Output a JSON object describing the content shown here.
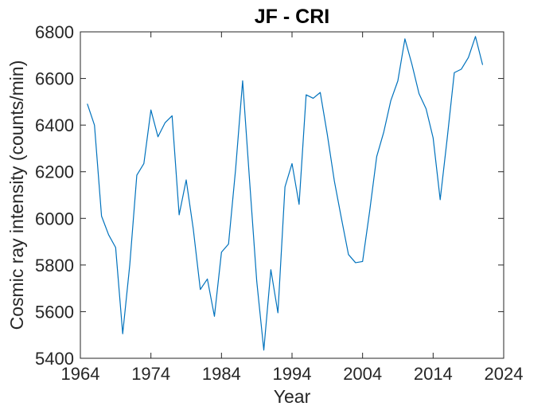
{
  "chart_data": {
    "type": "line",
    "title": "JF - CRI",
    "xlabel": "Year",
    "ylabel": "Cosmic ray intensity (counts/min)",
    "x": [
      1965,
      1966,
      1967,
      1968,
      1969,
      1970,
      1971,
      1972,
      1973,
      1974,
      1975,
      1976,
      1977,
      1978,
      1979,
      1980,
      1981,
      1982,
      1983,
      1984,
      1985,
      1986,
      1987,
      1988,
      1989,
      1990,
      1991,
      1992,
      1993,
      1994,
      1995,
      1996,
      1997,
      1998,
      1999,
      2000,
      2001,
      2002,
      2003,
      2004,
      2005,
      2006,
      2007,
      2008,
      2009,
      2010,
      2011,
      2012,
      2013,
      2014,
      2015,
      2016,
      2017,
      2018,
      2019,
      2020,
      2021
    ],
    "values": [
      6490,
      6400,
      6010,
      5930,
      5875,
      5505,
      5800,
      6185,
      6235,
      6465,
      6350,
      6410,
      6440,
      6015,
      6165,
      5955,
      5695,
      5740,
      5580,
      5855,
      5890,
      6210,
      6590,
      6155,
      5730,
      5435,
      5780,
      5595,
      6135,
      6235,
      6060,
      6530,
      6515,
      6540,
      6360,
      6160,
      6000,
      5845,
      5810,
      5815,
      6030,
      6265,
      6370,
      6505,
      6590,
      6770,
      6660,
      6535,
      6470,
      6345,
      6080,
      6345,
      6625,
      6640,
      6690,
      6780,
      6660
    ],
    "xlim": [
      1964,
      2024
    ],
    "ylim": [
      5400,
      6800
    ],
    "xticks": [
      1964,
      1974,
      1984,
      1994,
      2004,
      2014,
      2024
    ],
    "yticks": [
      5400,
      5600,
      5800,
      6000,
      6200,
      6400,
      6600,
      6800
    ],
    "grid": false,
    "legend_position": "none",
    "line_color": "#0072BD",
    "axis_color": "#262626",
    "background_color": "#ffffff"
  }
}
